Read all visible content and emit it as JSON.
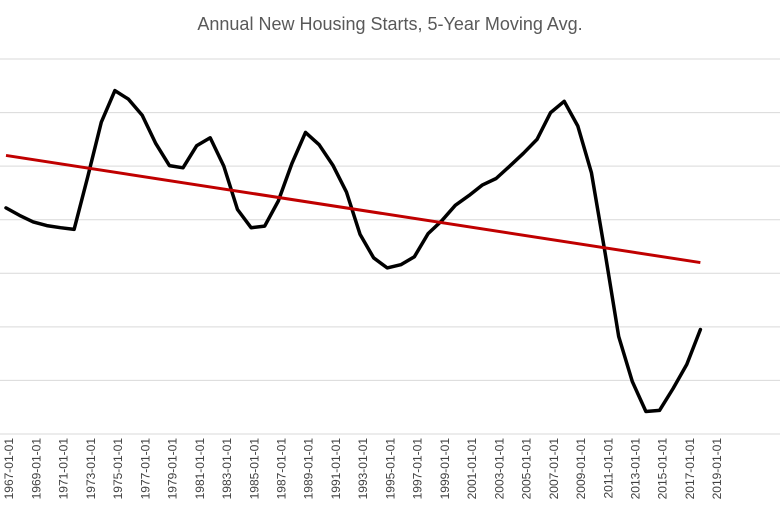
{
  "chart_data": {
    "type": "line",
    "title": "Annual New Housing Starts, 5-Year Moving Avg.",
    "xlabel": "",
    "ylabel": "",
    "grid": true,
    "legend": "none",
    "colors": {
      "series": "#000000",
      "trend": "#c00000",
      "grid": "#d9d9d9",
      "text": "#595959"
    },
    "x_tick_labels": [
      "1967-01-01",
      "1969-01-01",
      "1971-01-01",
      "1973-01-01",
      "1975-01-01",
      "1977-01-01",
      "1979-01-01",
      "1981-01-01",
      "1983-01-01",
      "1985-01-01",
      "1987-01-01",
      "1989-01-01",
      "1991-01-01",
      "1993-01-01",
      "1995-01-01",
      "1997-01-01",
      "1999-01-01",
      "2001-01-01",
      "2003-01-01",
      "2005-01-01",
      "2007-01-01",
      "2009-01-01",
      "2011-01-01",
      "2013-01-01",
      "2015-01-01",
      "2017-01-01",
      "2019-01-01"
    ],
    "ylim": [
      0,
      7
    ],
    "gridlines": [
      0,
      1,
      2,
      3,
      4,
      5,
      6,
      7
    ],
    "x": [
      1967,
      1968,
      1969,
      1970,
      1971,
      1972,
      1973,
      1974,
      1975,
      1976,
      1977,
      1978,
      1979,
      1980,
      1981,
      1982,
      1983,
      1984,
      1985,
      1986,
      1987,
      1988,
      1989,
      1990,
      1991,
      1992,
      1993,
      1994,
      1995,
      1996,
      1997,
      1998,
      1999,
      2000,
      2001,
      2002,
      2003,
      2004,
      2005,
      2006,
      2007,
      2008,
      2009,
      2010,
      2011,
      2012,
      2013,
      2014,
      2015,
      2016,
      2017,
      2018
    ],
    "series": [
      {
        "values": [
          4.22,
          4.08,
          3.96,
          3.89,
          3.85,
          3.82,
          4.8,
          5.82,
          6.41,
          6.25,
          5.95,
          5.42,
          5.01,
          4.97,
          5.38,
          5.53,
          5.0,
          4.19,
          3.85,
          3.88,
          4.35,
          5.05,
          5.63,
          5.4,
          5.02,
          4.52,
          3.73,
          3.29,
          3.1,
          3.16,
          3.31,
          3.74,
          3.98,
          4.27,
          4.45,
          4.65,
          4.77,
          5.0,
          5.24,
          5.5,
          6.0,
          6.21,
          5.75,
          4.88,
          3.38,
          1.82,
          0.98,
          0.42,
          0.44,
          0.85,
          1.3,
          1.95
        ]
      }
    ],
    "trend": {
      "values_at_x": [
        5.2,
        3.2
      ],
      "x": [
        1967,
        2018
      ]
    }
  }
}
